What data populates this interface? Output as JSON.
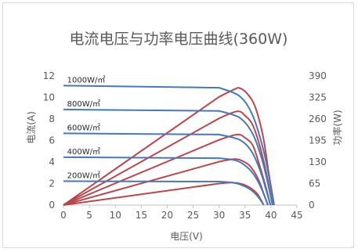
{
  "chart_data": {
    "type": "line",
    "title": "电流电压与功率电压曲线(360W)",
    "xlabel": "电压(V)",
    "ylabel": "电流(A)",
    "y2label": "功率(W)",
    "xlim": [
      0,
      45
    ],
    "ylim": [
      0,
      12
    ],
    "y2lim": [
      0,
      390
    ],
    "xticks": [
      "0",
      "5",
      "10",
      "15",
      "20",
      "25",
      "30",
      "35",
      "40",
      "45"
    ],
    "yticks": [
      "0",
      "2",
      "4",
      "6",
      "8",
      "10",
      "12"
    ],
    "y2ticks": [
      "0",
      "65",
      "130",
      "195",
      "260",
      "325",
      "390"
    ],
    "grid": false,
    "legend": "none",
    "colors": {
      "current": "#4a78b5",
      "power": "#b8474d",
      "axis": "#bfbfbf",
      "text": "#595959"
    },
    "current_series": [
      {
        "label": "1000W/㎡",
        "Isc": 11.1,
        "Voc": 40.6,
        "points": [
          [
            0,
            11.1
          ],
          [
            30,
            10.9
          ],
          [
            34,
            10.1
          ],
          [
            36.5,
            8.3
          ],
          [
            38.5,
            5.2
          ],
          [
            39.8,
            2.2
          ],
          [
            40.6,
            0
          ]
        ]
      },
      {
        "label": "800W/㎡",
        "Isc": 8.88,
        "Voc": 40.3,
        "points": [
          [
            0,
            8.88
          ],
          [
            30,
            8.75
          ],
          [
            34,
            8.1
          ],
          [
            36.5,
            6.6
          ],
          [
            38.3,
            4.2
          ],
          [
            39.5,
            1.8
          ],
          [
            40.3,
            0
          ]
        ]
      },
      {
        "label": "600W/㎡",
        "Isc": 6.66,
        "Voc": 39.9,
        "points": [
          [
            0,
            6.66
          ],
          [
            30,
            6.55
          ],
          [
            34,
            6.05
          ],
          [
            36.3,
            4.95
          ],
          [
            38,
            3.1
          ],
          [
            39.1,
            1.35
          ],
          [
            39.9,
            0
          ]
        ]
      },
      {
        "label": "400W/㎡",
        "Isc": 4.44,
        "Voc": 39.4,
        "points": [
          [
            0,
            4.44
          ],
          [
            30,
            4.36
          ],
          [
            33.5,
            4.1
          ],
          [
            36,
            3.25
          ],
          [
            37.6,
            2.1
          ],
          [
            38.7,
            0.9
          ],
          [
            39.4,
            0
          ]
        ]
      },
      {
        "label": "200W/㎡",
        "Isc": 2.22,
        "Voc": 38.6,
        "points": [
          [
            0,
            2.22
          ],
          [
            30,
            2.18
          ],
          [
            33,
            2.05
          ],
          [
            35.5,
            1.6
          ],
          [
            37,
            1.05
          ],
          [
            38,
            0.45
          ],
          [
            38.6,
            0
          ]
        ]
      }
    ],
    "power_series": [
      {
        "irradiance": "1000W/㎡",
        "points": [
          [
            0,
            0
          ],
          [
            30,
            327
          ],
          [
            33,
            350
          ],
          [
            34,
            353
          ],
          [
            35.5,
            335
          ],
          [
            37,
            295
          ],
          [
            38.5,
            205
          ],
          [
            39.6,
            95
          ],
          [
            40.6,
            0
          ]
        ]
      },
      {
        "irradiance": "800W/㎡",
        "points": [
          [
            0,
            0
          ],
          [
            30,
            262
          ],
          [
            33.5,
            283
          ],
          [
            35,
            270
          ],
          [
            36.5,
            241
          ],
          [
            38,
            170
          ],
          [
            39.4,
            75
          ],
          [
            40.3,
            0
          ]
        ]
      },
      {
        "irradiance": "600W/㎡",
        "points": [
          [
            0,
            0
          ],
          [
            30,
            197
          ],
          [
            33.5,
            213
          ],
          [
            35,
            203
          ],
          [
            36.5,
            180
          ],
          [
            37.8,
            120
          ],
          [
            39,
            55
          ],
          [
            39.9,
            0
          ]
        ]
      },
      {
        "irradiance": "400W/㎡",
        "points": [
          [
            0,
            0
          ],
          [
            30,
            131
          ],
          [
            33,
            139
          ],
          [
            34.5,
            133
          ],
          [
            36,
            117
          ],
          [
            37.5,
            80
          ],
          [
            38.6,
            35
          ],
          [
            39.4,
            0
          ]
        ]
      },
      {
        "irradiance": "200W/㎡",
        "points": [
          [
            0,
            0
          ],
          [
            30,
            65
          ],
          [
            32.5,
            68
          ],
          [
            34.5,
            63
          ],
          [
            36,
            52
          ],
          [
            37.3,
            35
          ],
          [
            38.1,
            15
          ],
          [
            38.6,
            0
          ]
        ]
      }
    ]
  }
}
